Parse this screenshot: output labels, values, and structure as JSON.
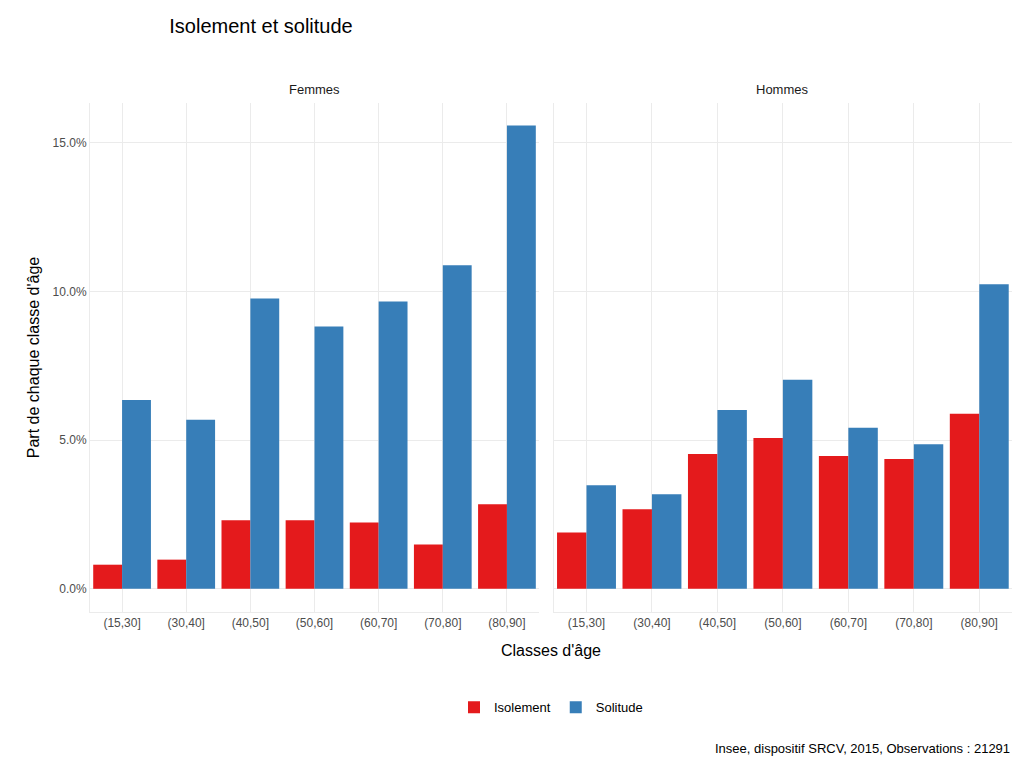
{
  "title": "Isolement et solitude",
  "xlabel": "Classes d'âge",
  "ylabel": "Part de chaque classe d'âge",
  "source": "Insee, dispositif SRCV, 2015, Observations : 21291",
  "chart_data": [
    {
      "type": "bar",
      "title": "Femmes",
      "categories": [
        "(15,30]",
        "(30,40]",
        "(40,50]",
        "(50,60]",
        "(60,70]",
        "(70,80]",
        "(80,90]"
      ],
      "series": [
        {
          "name": "Isolement",
          "color": "#E41A1C",
          "values": [
            0.81,
            0.98,
            2.3,
            2.3,
            2.23,
            1.49,
            2.84
          ]
        },
        {
          "name": "Solitude",
          "color": "#377EB8",
          "values": [
            6.35,
            5.68,
            9.76,
            8.82,
            9.66,
            10.88,
            15.57
          ]
        }
      ],
      "ylim": [
        -0.78,
        16.33
      ],
      "yticks": [
        {
          "value": 0,
          "label": "0.0%"
        },
        {
          "value": 5,
          "label": "5.0%"
        },
        {
          "value": 10,
          "label": "10.0%"
        },
        {
          "value": 15,
          "label": "15.0%"
        }
      ],
      "grid": true,
      "legend": "bottom"
    },
    {
      "type": "bar",
      "title": "Hommes",
      "categories": [
        "(15,30]",
        "(30,40]",
        "(40,50]",
        "(50,60]",
        "(60,70]",
        "(70,80]",
        "(80,90]"
      ],
      "series": [
        {
          "name": "Isolement",
          "color": "#E41A1C",
          "values": [
            1.89,
            2.67,
            4.53,
            5.07,
            4.46,
            4.36,
            5.88
          ]
        },
        {
          "name": "Solitude",
          "color": "#377EB8",
          "values": [
            3.48,
            3.18,
            6.01,
            7.03,
            5.41,
            4.86,
            10.24
          ]
        }
      ],
      "ylim": [
        -0.78,
        16.33
      ],
      "yticks": [
        {
          "value": 0,
          "label": "0.0%"
        },
        {
          "value": 5,
          "label": "5.0%"
        },
        {
          "value": 10,
          "label": "10.0%"
        },
        {
          "value": 15,
          "label": "15.0%"
        }
      ],
      "grid": true,
      "tick_labels": "x"
    }
  ]
}
